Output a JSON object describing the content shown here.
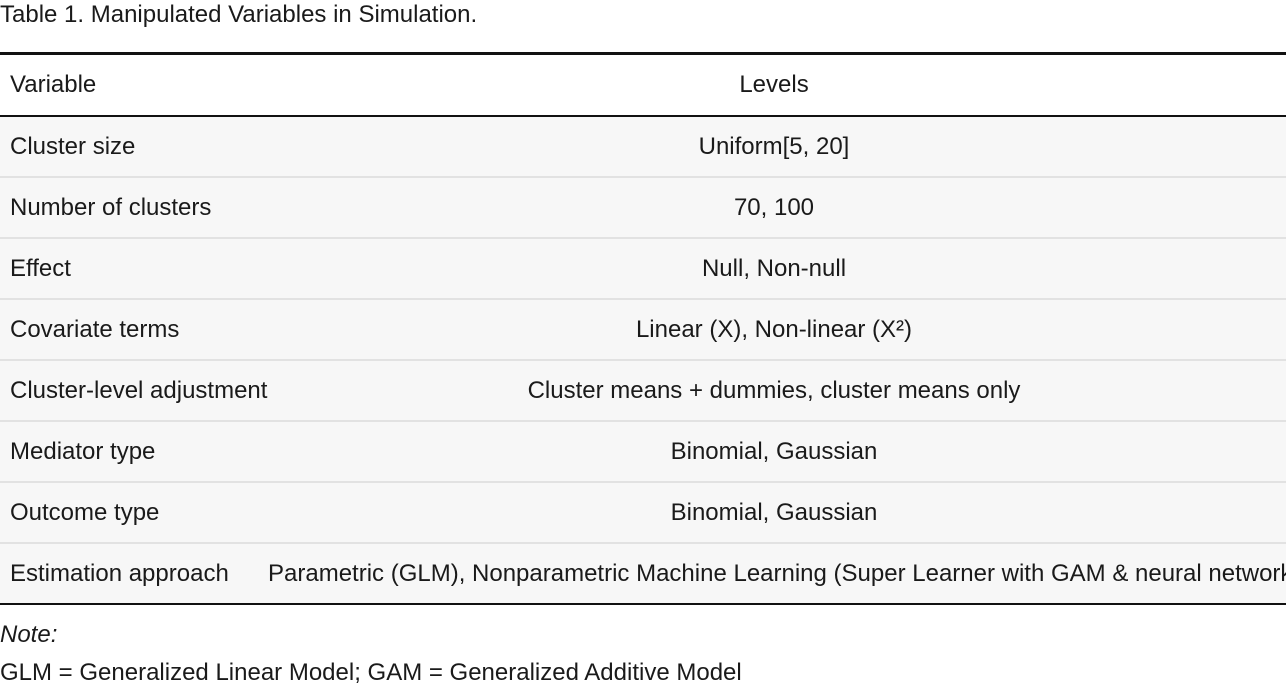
{
  "caption": "Table 1. Manipulated Variables in Simulation.",
  "table": {
    "headers": {
      "variable": "Variable",
      "levels": "Levels"
    },
    "rows": [
      {
        "variable": "Cluster size",
        "levels": "Uniform[5, 20]"
      },
      {
        "variable": "Number of clusters",
        "levels": "70, 100"
      },
      {
        "variable": "Effect",
        "levels": "Null, Non-null"
      },
      {
        "variable": "Covariate terms",
        "levels": "Linear (X), Non-linear (X²)"
      },
      {
        "variable": "Cluster-level adjustment",
        "levels": "Cluster means + dummies, cluster means only"
      },
      {
        "variable": "Mediator type",
        "levels": "Binomial, Gaussian"
      },
      {
        "variable": "Outcome type",
        "levels": "Binomial, Gaussian"
      },
      {
        "variable": "Estimation approach",
        "levels": "Parametric (GLM), Nonparametric Machine Learning (Super Learner with GAM & neural networks)"
      }
    ]
  },
  "note": {
    "label": "Note:",
    "text": "GLM = Generalized Linear Model; GAM = Generalized Additive Model"
  },
  "colors": {
    "row_background": "#f7f7f7",
    "rule_dark": "#111111",
    "rule_light": "#e2e2e2"
  }
}
